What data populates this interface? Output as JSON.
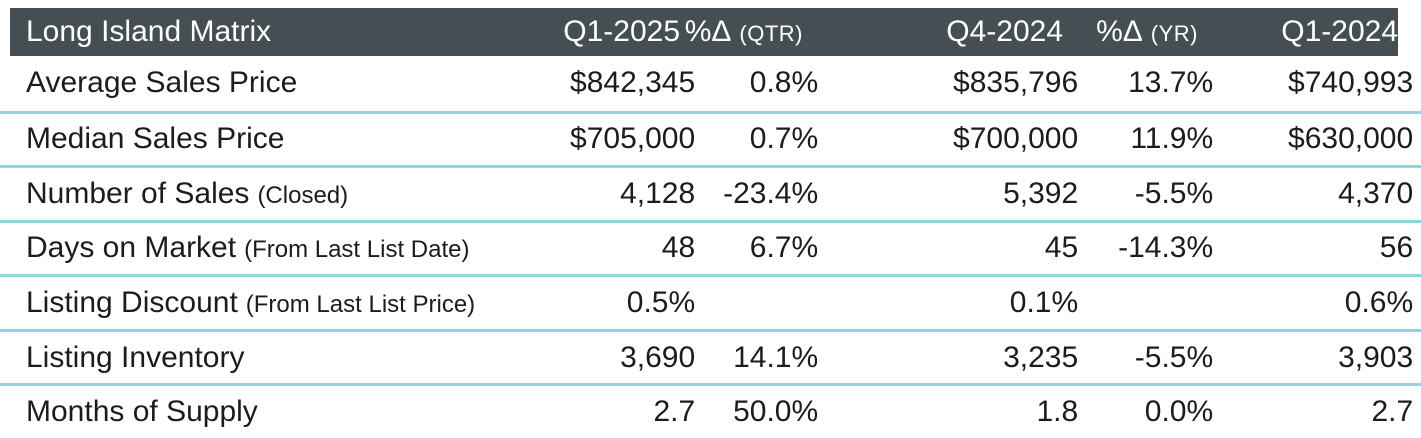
{
  "colors": {
    "header_background": "#454e52",
    "header_text": "#ffffff",
    "body_text": "#1c1c1c",
    "divider": "#93d5dc",
    "page_background": "#ffffff"
  },
  "header_cols": [
    {
      "main": "Q1-2025",
      "sub": ""
    },
    {
      "main": "%Δ",
      "sub": "(QTR)"
    },
    {
      "main": "Q4-2024",
      "sub": ""
    },
    {
      "main": "%Δ",
      "sub": "(YR)"
    },
    {
      "main": "Q1-2024",
      "sub": ""
    }
  ],
  "chart_data": {
    "type": "table",
    "title": "Long Island Matrix",
    "columns": [
      "Q1-2025",
      "%Δ (QTR)",
      "Q4-2024",
      "%Δ (YR)",
      "Q1-2024"
    ],
    "rows": [
      {
        "metric": "Average Sales Price",
        "note": "",
        "values": [
          "$842,345",
          "0.8%",
          "$835,796",
          "13.7%",
          "$740,993"
        ]
      },
      {
        "metric": "Median Sales Price",
        "note": "",
        "values": [
          "$705,000",
          "0.7%",
          "$700,000",
          "11.9%",
          "$630,000"
        ]
      },
      {
        "metric": "Number of Sales",
        "note": "(Closed)",
        "values": [
          "4,128",
          "-23.4%",
          "5,392",
          "-5.5%",
          "4,370"
        ]
      },
      {
        "metric": "Days on Market",
        "note": "(From Last List Date)",
        "values": [
          "48",
          "6.7%",
          "45",
          "-14.3%",
          "56"
        ]
      },
      {
        "metric": "Listing Discount",
        "note": "(From Last List Price)",
        "values": [
          "0.5%",
          "",
          "0.1%",
          "",
          "0.6%"
        ]
      },
      {
        "metric": "Listing Inventory",
        "note": "",
        "values": [
          "3,690",
          "14.1%",
          "3,235",
          "-5.5%",
          "3,903"
        ]
      },
      {
        "metric": "Months of Supply",
        "note": "",
        "values": [
          "2.7",
          "50.0%",
          "1.8",
          "0.0%",
          "2.7"
        ]
      }
    ]
  }
}
